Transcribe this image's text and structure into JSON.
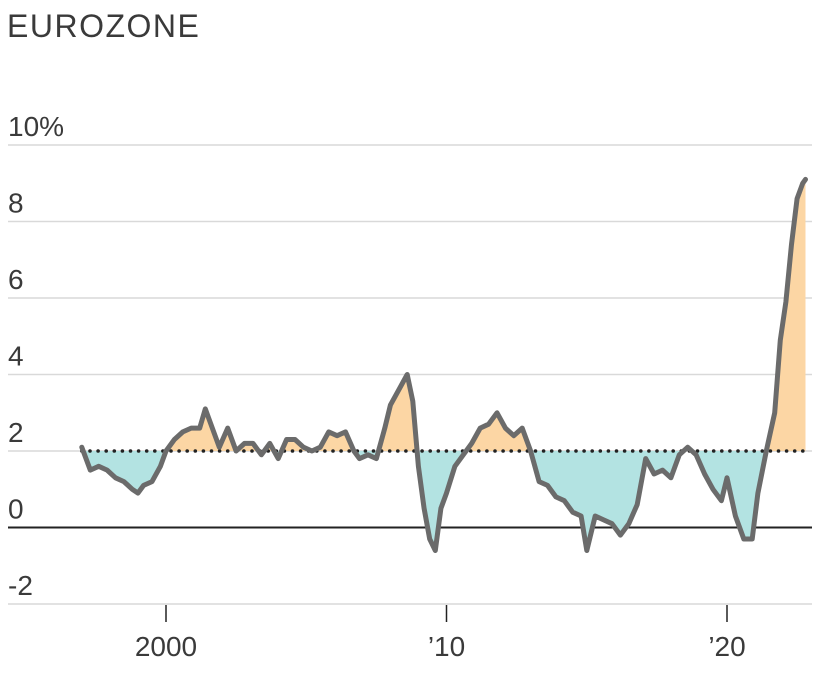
{
  "chart_data": {
    "type": "line",
    "title": "EUROZONE",
    "xlabel": "",
    "ylabel": "",
    "ylim": [
      -2,
      10
    ],
    "xlim": [
      1997.0,
      2022.9
    ],
    "yticks": [
      {
        "value": 10,
        "label": "10%"
      },
      {
        "value": 8,
        "label": "8"
      },
      {
        "value": 6,
        "label": "6"
      },
      {
        "value": 4,
        "label": "4"
      },
      {
        "value": 2,
        "label": "2"
      },
      {
        "value": 0,
        "label": "0"
      },
      {
        "value": -2,
        "label": "-2"
      }
    ],
    "xticks": [
      {
        "value": 2000,
        "label": "2000"
      },
      {
        "value": 2010,
        "label": "’10"
      },
      {
        "value": 2020,
        "label": "’20"
      }
    ],
    "reference_value": 2,
    "grid": true,
    "colors": {
      "line": "#6b6b6b",
      "above_fill": "#fcd6a4",
      "below_fill": "#b3e3e2",
      "target_line": "#222222",
      "grid": "#d9d9d9",
      "zero_line": "#222222"
    },
    "series": [
      {
        "x": [
          1997.0,
          1997.3,
          1997.6,
          1997.9,
          1998.2,
          1998.5,
          1998.8,
          1999.0,
          1999.2,
          1999.5,
          1999.8,
          2000.0,
          2000.3,
          2000.6,
          2000.9,
          2001.2,
          2001.4,
          2001.6,
          2001.9,
          2002.2,
          2002.5,
          2002.8,
          2003.1,
          2003.4,
          2003.7,
          2004.0,
          2004.3,
          2004.6,
          2004.9,
          2005.2,
          2005.5,
          2005.8,
          2006.1,
          2006.4,
          2006.7,
          2006.9,
          2007.2,
          2007.5,
          2007.8,
          2008.0,
          2008.3,
          2008.6,
          2008.8,
          2009.0,
          2009.2,
          2009.4,
          2009.6,
          2009.8,
          2010.0,
          2010.3,
          2010.6,
          2010.9,
          2011.2,
          2011.5,
          2011.8,
          2012.1,
          2012.4,
          2012.7,
          2013.0,
          2013.3,
          2013.6,
          2013.9,
          2014.2,
          2014.5,
          2014.8,
          2015.0,
          2015.3,
          2015.6,
          2015.9,
          2016.2,
          2016.5,
          2016.8,
          2017.1,
          2017.4,
          2017.7,
          2018.0,
          2018.3,
          2018.6,
          2018.9,
          2019.2,
          2019.5,
          2019.8,
          2020.0,
          2020.3,
          2020.6,
          2020.9,
          2021.1,
          2021.4,
          2021.7,
          2021.9,
          2022.1,
          2022.3,
          2022.5,
          2022.7,
          2022.8
        ],
        "y": [
          2.1,
          1.5,
          1.6,
          1.5,
          1.3,
          1.2,
          1.0,
          0.9,
          1.1,
          1.2,
          1.6,
          2.0,
          2.3,
          2.5,
          2.6,
          2.6,
          3.1,
          2.7,
          2.1,
          2.6,
          2.0,
          2.2,
          2.2,
          1.9,
          2.2,
          1.8,
          2.3,
          2.3,
          2.1,
          2.0,
          2.1,
          2.5,
          2.4,
          2.5,
          2.0,
          1.8,
          1.9,
          1.8,
          2.6,
          3.2,
          3.6,
          4.0,
          3.3,
          1.6,
          0.5,
          -0.3,
          -0.6,
          0.5,
          0.9,
          1.6,
          1.9,
          2.2,
          2.6,
          2.7,
          3.0,
          2.6,
          2.4,
          2.6,
          2.0,
          1.2,
          1.1,
          0.8,
          0.7,
          0.4,
          0.3,
          -0.6,
          0.3,
          0.2,
          0.1,
          -0.2,
          0.1,
          0.6,
          1.8,
          1.4,
          1.5,
          1.3,
          1.9,
          2.1,
          1.9,
          1.4,
          1.0,
          0.7,
          1.3,
          0.3,
          -0.3,
          -0.3,
          0.9,
          2.0,
          3.0,
          4.9,
          5.9,
          7.4,
          8.6,
          9.0,
          9.1
        ]
      }
    ]
  }
}
